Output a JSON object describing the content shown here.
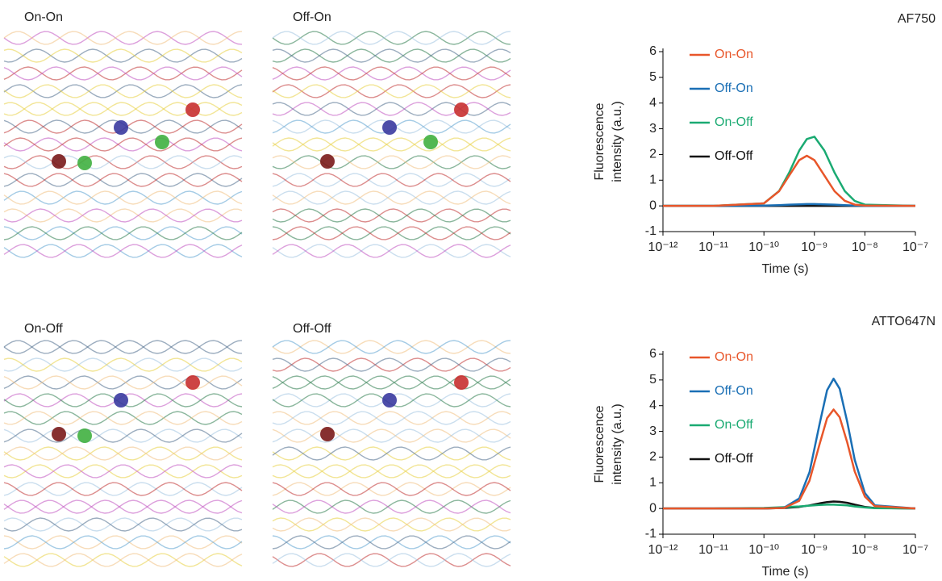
{
  "images": [
    {
      "label": "On-On"
    },
    {
      "label": "Off-On"
    },
    {
      "label": "On-Off"
    },
    {
      "label": "Off-Off"
    }
  ],
  "chart_data": [
    {
      "type": "line",
      "title": "AF750",
      "xlabel": "Time (s)",
      "ylabel": [
        "Fluorescence",
        "intensity (a.u.)"
      ],
      "xscale": "log",
      "x": [
        1e-12,
        1e-11,
        1e-10,
        2e-10,
        3.16e-10,
        5e-10,
        7.08e-10,
        1e-09,
        1.58e-09,
        2.51e-09,
        3.98e-09,
        6.31e-09,
        1e-08,
        1e-07
      ],
      "series": [
        {
          "name": "On-On",
          "color": "#e8562a",
          "values": [
            0,
            0,
            0.1,
            0.57,
            1.18,
            1.78,
            1.95,
            1.78,
            1.18,
            0.57,
            0.2,
            0.05,
            0.01,
            0
          ]
        },
        {
          "name": "Off-On",
          "color": "#1a6fb5",
          "values": [
            0,
            0,
            0.01,
            0.03,
            0.05,
            0.06,
            0.07,
            0.07,
            0.06,
            0.05,
            0.03,
            0.01,
            0,
            0
          ]
        },
        {
          "name": "On-Off",
          "color": "#1aaa72",
          "values": [
            0,
            0,
            0.1,
            0.58,
            1.29,
            2.15,
            2.6,
            2.69,
            2.15,
            1.29,
            0.58,
            0.19,
            0.05,
            0
          ]
        },
        {
          "name": "Off-Off",
          "color": "#111111",
          "values": [
            0,
            0,
            0,
            0,
            0,
            0,
            0,
            0,
            0,
            0,
            0,
            0,
            0,
            0
          ]
        }
      ],
      "xlim": [
        1e-12,
        1e-07
      ],
      "xticks": [
        {
          "value": 1e-12,
          "label": "10⁻¹²"
        },
        {
          "value": 1e-11,
          "label": "10⁻¹¹"
        },
        {
          "value": 1e-10,
          "label": "10⁻¹⁰"
        },
        {
          "value": 1e-09,
          "label": "10⁻⁹"
        },
        {
          "value": 1e-08,
          "label": "10⁻⁸"
        },
        {
          "value": 1e-07,
          "label": "10⁻⁷"
        }
      ],
      "ylim": [
        -1,
        6
      ],
      "yticks": [
        -1,
        0,
        1,
        2,
        3,
        4,
        5,
        6
      ],
      "legend": "upper left"
    },
    {
      "type": "line",
      "title": "ATTO647N",
      "xlabel": "Time (s)",
      "ylabel": [
        "Fluorescence",
        "intensity (a.u.)"
      ],
      "xscale": "log",
      "x": [
        1e-12,
        1e-11,
        1e-10,
        2.5e-10,
        5e-10,
        8e-10,
        1.26e-09,
        1.78e-09,
        2.4e-09,
        3.16e-09,
        4.47e-09,
        6.3e-09,
        1e-08,
        1.58e-08,
        1e-07
      ],
      "series": [
        {
          "name": "On-On",
          "color": "#e8562a",
          "values": [
            0,
            0,
            0,
            0.02,
            0.3,
            1.08,
            2.49,
            3.51,
            3.85,
            3.55,
            2.57,
            1.44,
            0.46,
            0.09,
            0
          ]
        },
        {
          "name": "Off-On",
          "color": "#1a6fb5",
          "values": [
            0,
            0,
            0,
            0.03,
            0.39,
            1.41,
            3.27,
            4.6,
            5.05,
            4.66,
            3.37,
            1.89,
            0.6,
            0.12,
            0
          ]
        },
        {
          "name": "On-Off",
          "color": "#1aaa72",
          "values": [
            0,
            0,
            0.02,
            0.05,
            0.08,
            0.11,
            0.14,
            0.15,
            0.15,
            0.14,
            0.12,
            0.08,
            0.04,
            0.01,
            0
          ]
        },
        {
          "name": "Off-Off",
          "color": "#111111",
          "values": [
            0,
            0,
            0,
            0.02,
            0.06,
            0.12,
            0.2,
            0.25,
            0.27,
            0.26,
            0.22,
            0.15,
            0.06,
            0.02,
            0
          ]
        }
      ],
      "xlim": [
        1e-12,
        1e-07
      ],
      "xticks": [
        {
          "value": 1e-12,
          "label": "10⁻¹²"
        },
        {
          "value": 1e-11,
          "label": "10⁻¹¹"
        },
        {
          "value": 1e-10,
          "label": "10⁻¹⁰"
        },
        {
          "value": 1e-09,
          "label": "10⁻⁹"
        },
        {
          "value": 1e-08,
          "label": "10⁻⁸"
        },
        {
          "value": 1e-07,
          "label": "10⁻⁷"
        }
      ],
      "ylim": [
        -1,
        6
      ],
      "yticks": [
        -1,
        0,
        1,
        2,
        3,
        4,
        5,
        6
      ],
      "legend": "upper left"
    }
  ]
}
